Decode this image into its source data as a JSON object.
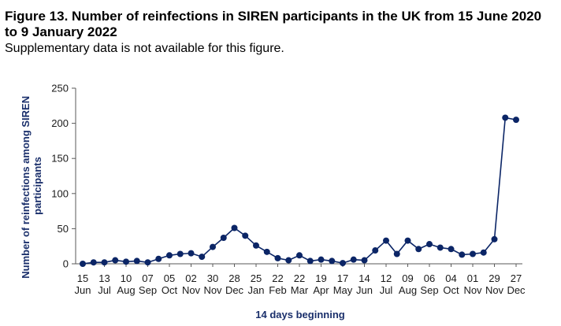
{
  "figure": {
    "title": "Figure 13. Number of reinfections in SIREN participants in the UK from 15 June 2020 to 9 January 2022",
    "subtitle": "Supplementary data is not available for this figure."
  },
  "colors": {
    "series": "#0b2566",
    "axis": "#5a5a5a"
  },
  "chart_data": {
    "type": "line",
    "xlabel": "14 days beginning",
    "ylabel_lines": [
      "Number of reinfections among SIREN",
      "participants"
    ],
    "ylim": [
      0,
      250
    ],
    "yticks": [
      0,
      50,
      100,
      150,
      200,
      250
    ],
    "grid": false,
    "legend": "none",
    "x": [
      "15 Jun",
      "29 Jun",
      "13 Jul",
      "27 Jul",
      "10 Aug",
      "24 Aug",
      "07 Sep",
      "21 Sep",
      "05 Oct",
      "19 Oct",
      "02 Nov",
      "16 Nov",
      "30 Nov",
      "14 Dec",
      "28 Dec",
      "11 Jan",
      "25 Jan",
      "08 Feb",
      "22 Feb",
      "08 Mar",
      "22 Mar",
      "05 Apr",
      "19 Apr",
      "03 May",
      "17 May",
      "31 May",
      "14 Jun",
      "28 Jun",
      "12 Jul",
      "26 Jul",
      "09 Aug",
      "23 Aug",
      "06 Sep",
      "20 Sep",
      "04 Oct",
      "18 Oct",
      "01 Nov",
      "15 Nov",
      "29 Nov",
      "13 Dec",
      "27 Dec"
    ],
    "tick_labels": [
      {
        "day": "15",
        "month": "Jun"
      },
      {
        "day": "13",
        "month": "Jul"
      },
      {
        "day": "10",
        "month": "Aug"
      },
      {
        "day": "07",
        "month": "Sep"
      },
      {
        "day": "05",
        "month": "Oct"
      },
      {
        "day": "02",
        "month": "Nov"
      },
      {
        "day": "30",
        "month": "Nov"
      },
      {
        "day": "28",
        "month": "Dec"
      },
      {
        "day": "25",
        "month": "Jan"
      },
      {
        "day": "22",
        "month": "Feb"
      },
      {
        "day": "22",
        "month": "Mar"
      },
      {
        "day": "19",
        "month": "Apr"
      },
      {
        "day": "17",
        "month": "May"
      },
      {
        "day": "14",
        "month": "Jun"
      },
      {
        "day": "12",
        "month": "Jul"
      },
      {
        "day": "09",
        "month": "Aug"
      },
      {
        "day": "06",
        "month": "Sep"
      },
      {
        "day": "04",
        "month": "Oct"
      },
      {
        "day": "01",
        "month": "Nov"
      },
      {
        "day": "29",
        "month": "Nov"
      },
      {
        "day": "27",
        "month": "Dec"
      }
    ],
    "series": [
      {
        "values": [
          0,
          2,
          2,
          5,
          3,
          4,
          2,
          7,
          12,
          14,
          15,
          10,
          24,
          37,
          51,
          40,
          26,
          17,
          8,
          5,
          12,
          4,
          6,
          4,
          1,
          6,
          5,
          19,
          33,
          14,
          33,
          21,
          28,
          23,
          21,
          13,
          14,
          16,
          35,
          208,
          205
        ]
      }
    ]
  }
}
